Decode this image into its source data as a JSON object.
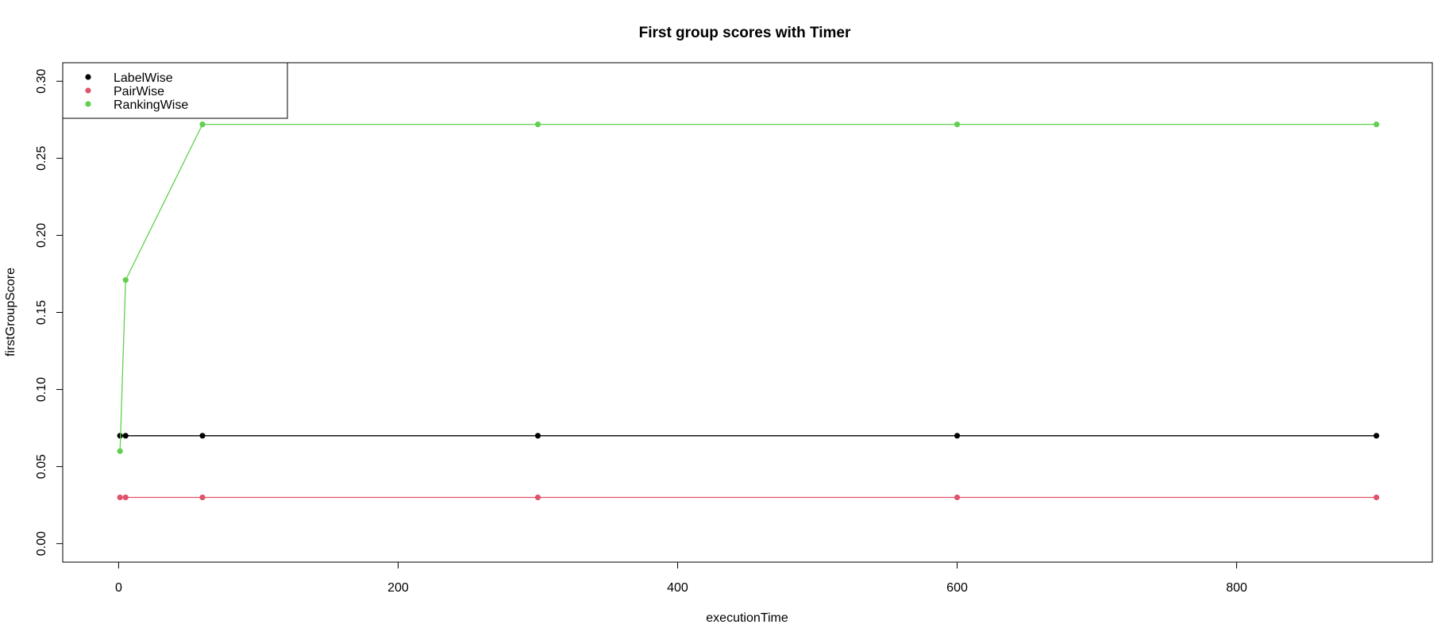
{
  "chart_data": {
    "type": "line",
    "title": "First group scores with Timer",
    "xlabel": "executionTime",
    "ylabel": "firstGroupScore",
    "xlim": [
      -40,
      940
    ],
    "ylim": [
      -0.012,
      0.312
    ],
    "xticks": [
      0,
      200,
      400,
      600,
      800
    ],
    "yticks": [
      0.0,
      0.05,
      0.1,
      0.15,
      0.2,
      0.25,
      0.3
    ],
    "ytick_labels": [
      "0.00",
      "0.05",
      "0.10",
      "0.15",
      "0.20",
      "0.25",
      "0.30"
    ],
    "legend_position": "top-left",
    "grid": false,
    "x": [
      1,
      5,
      60,
      300,
      600,
      900
    ],
    "series": [
      {
        "name": "LabelWise",
        "color": "#000000",
        "values": [
          0.07,
          0.07,
          0.07,
          0.07,
          0.07,
          0.07
        ]
      },
      {
        "name": "PairWise",
        "color": "#DF536B",
        "values": [
          0.03,
          0.03,
          0.03,
          0.03,
          0.03,
          0.03
        ]
      },
      {
        "name": "RankingWise",
        "color": "#61D04F",
        "values": [
          0.06,
          0.171,
          0.272,
          0.272,
          0.272,
          0.272
        ]
      }
    ]
  }
}
